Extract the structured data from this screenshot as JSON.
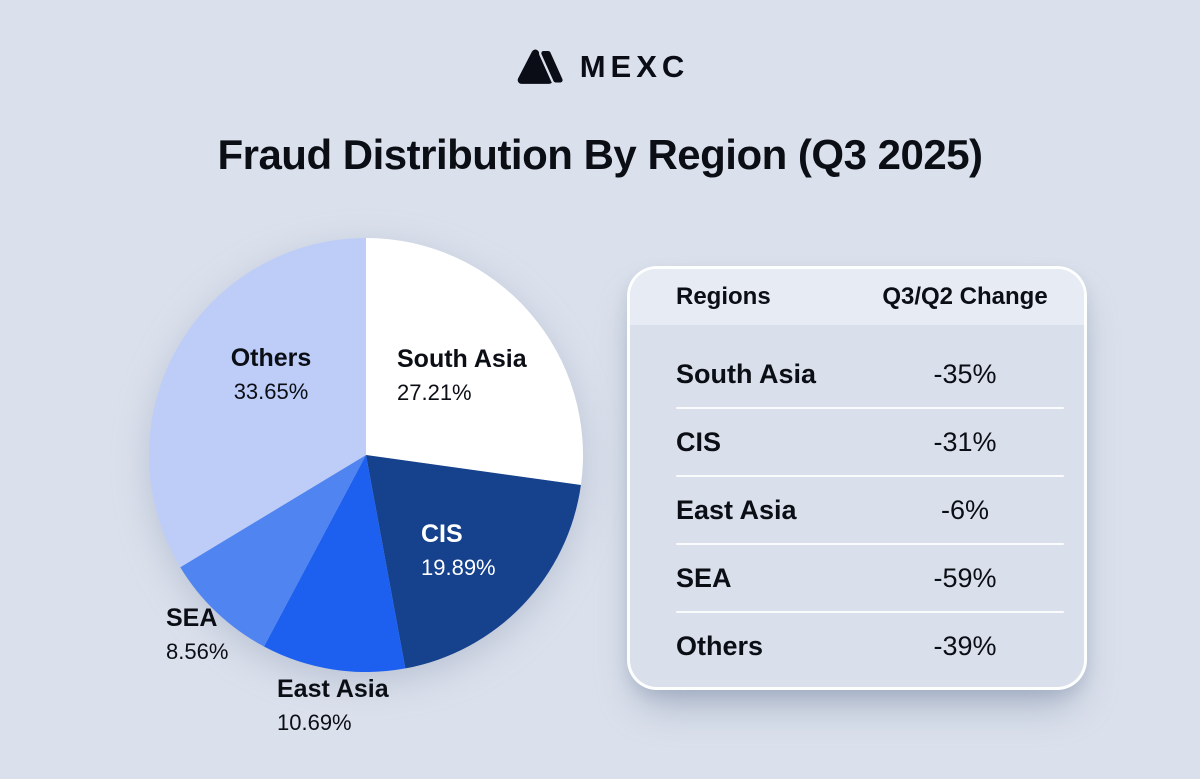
{
  "brand": {
    "name": "MEXC"
  },
  "title": "Fraud Distribution By Region (Q3 2025)",
  "colors": {
    "page_background": "#dbe1ec",
    "text_dark": "#0b0e15",
    "card_body": "#dae0eb",
    "card_header": "#e7ebf3"
  },
  "chart_data": {
    "type": "pie",
    "title": "Fraud Distribution By Region (Q3 2025)",
    "start_angle_deg": 0,
    "direction": "clockwise",
    "legend_position": "labels-on-chart",
    "segments": [
      {
        "label": "South Asia",
        "value": 27.21,
        "display": "27.21%",
        "color": "#ffffff",
        "label_color": "#0b0e15"
      },
      {
        "label": "CIS",
        "value": 19.89,
        "display": "19.89%",
        "color": "#15418d",
        "label_color": "#ffffff"
      },
      {
        "label": "East Asia",
        "value": 10.69,
        "display": "10.69%",
        "color": "#1d60f0",
        "label_color": "#0b0e15"
      },
      {
        "label": "SEA",
        "value": 8.56,
        "display": "8.56%",
        "color": "#5084f1",
        "label_color": "#0b0e15"
      },
      {
        "label": "Others",
        "value": 33.65,
        "display": "33.65%",
        "color": "#bdcdf8",
        "label_color": "#0b0e15"
      }
    ]
  },
  "table": {
    "headers": {
      "region": "Regions",
      "change": "Q3/Q2 Change"
    },
    "rows": [
      {
        "region": "South Asia",
        "change": "-35%"
      },
      {
        "region": "CIS",
        "change": "-31%"
      },
      {
        "region": "East Asia",
        "change": "-6%"
      },
      {
        "region": "SEA",
        "change": "-59%"
      },
      {
        "region": "Others",
        "change": "-39%"
      }
    ]
  }
}
